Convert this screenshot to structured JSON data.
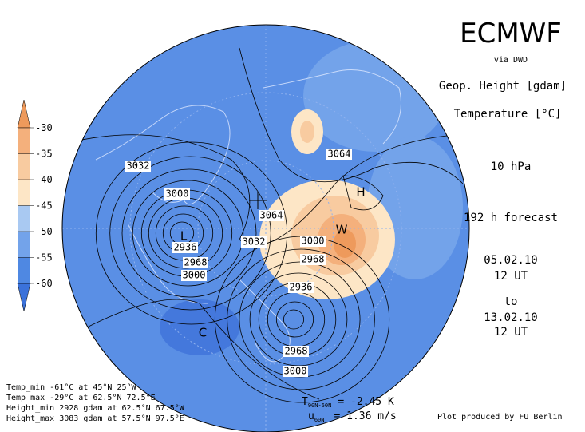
{
  "header": {
    "title": "ECMWF",
    "source": "via DWD",
    "variable1": "Geop. Height [gdam]",
    "variable2": "Temperature [°C]",
    "level": "10 hPa",
    "forecast": "192 h forecast",
    "start_date": "05.02.10",
    "start_time": "12 UT",
    "to": "to",
    "end_date": "13.02.10",
    "end_time": "12 UT"
  },
  "colorbar": {
    "ticks": [
      -30,
      -35,
      -40,
      -45,
      -50,
      -55,
      -60
    ],
    "colors": [
      "#ee9a5c",
      "#f4b07c",
      "#f8cba0",
      "#fde6c6",
      "#a9c9f2",
      "#73a3ea",
      "#4f88e2",
      "#3b72da"
    ]
  },
  "contour_labels": [
    "3032",
    "3000",
    "2936",
    "2968",
    "3000",
    "3064",
    "3064",
    "3032",
    "3000",
    "2968",
    "2936",
    "2968",
    "3000"
  ],
  "centers": [
    "L",
    "C",
    "W",
    "H"
  ],
  "stats": [
    "Temp_min -61°C at 45°N 25°W",
    "Temp_max -29°C at 62.5°N 72.5°E",
    "Height_min 2928 gdam at 62.5°N 67.5°W",
    "Height_max 3083 gdam at 57.5°N 97.5°E"
  ],
  "mean": {
    "temp_symbol": "T",
    "temp_sub": "90N-60N",
    "temp_value": "= -2.45 K",
    "wind_symbol": "u",
    "wind_sub": "60N",
    "wind_value": "= 1.36 m/s"
  },
  "credit": "Plot produced by FU Berlin"
}
